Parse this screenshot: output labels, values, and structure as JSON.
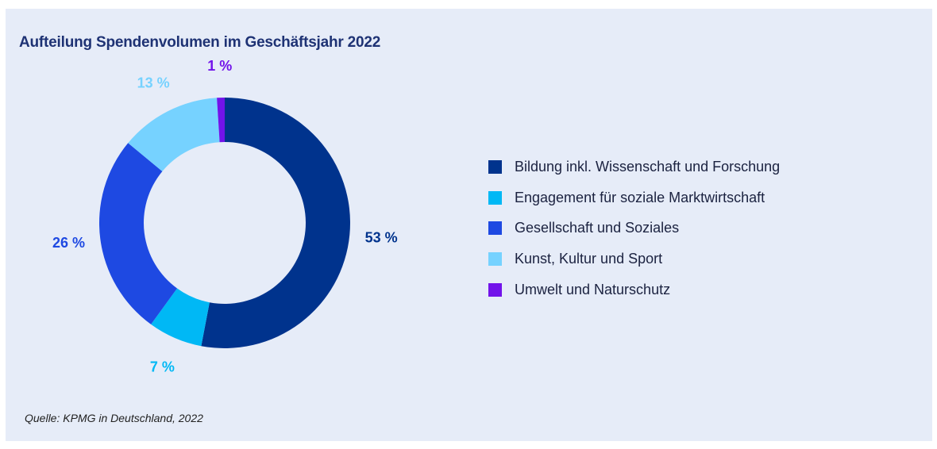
{
  "title": "Aufteilung Spendenvolumen im Geschäftsjahr 2022",
  "source": "Quelle: KPMG in Deutschland, 2022",
  "chart_data": {
    "type": "pie",
    "donut": true,
    "title": "Aufteilung Spendenvolumen im Geschäftsjahr 2022",
    "legend_position": "right",
    "slices": [
      {
        "label": "Bildung inkl. Wissenschaft und Forschung",
        "value": 53,
        "display": "53 %",
        "color": "#00338d"
      },
      {
        "label": "Engagement für soziale Marktwirtschaft",
        "value": 7,
        "display": "7 %",
        "color": "#00b8f5"
      },
      {
        "label": "Gesellschaft und Soziales",
        "value": 26,
        "display": "26 %",
        "color": "#1e49e2"
      },
      {
        "label": "Kunst, Kultur und Sport",
        "value": 13,
        "display": "13 %",
        "color": "#76d2ff"
      },
      {
        "label": "Umwelt und Naturschutz",
        "value": 1,
        "display": "1 %",
        "color": "#7213ea"
      }
    ]
  }
}
